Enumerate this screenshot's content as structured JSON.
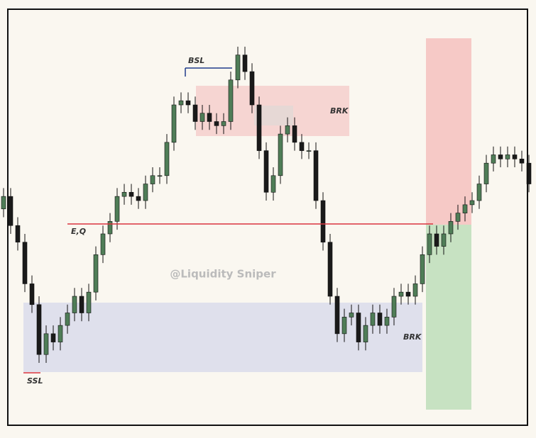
{
  "chart_data": {
    "type": "candlestick",
    "ylim": [
      0,
      100
    ],
    "open": [
      52,
      55,
      48,
      44,
      34,
      29,
      17,
      22,
      20,
      24,
      27,
      31,
      27,
      32,
      41,
      46,
      49,
      55,
      56,
      55,
      54,
      58,
      60,
      60,
      68,
      77,
      78,
      77,
      73,
      75,
      73,
      72,
      73,
      83,
      89,
      85,
      77,
      66,
      56,
      60,
      70,
      72,
      68,
      66,
      66,
      54,
      44,
      31,
      22,
      26,
      27,
      20,
      24,
      27,
      24,
      26,
      31,
      32,
      31,
      34,
      41,
      46,
      43,
      46,
      49,
      51,
      53,
      54,
      58,
      63,
      65,
      64,
      65,
      64,
      63
    ],
    "high": [
      57,
      57,
      50,
      46,
      36,
      31,
      24,
      24,
      26,
      29,
      33,
      33,
      34,
      43,
      48,
      51,
      57,
      58,
      58,
      57,
      60,
      62,
      62,
      70,
      79,
      80,
      80,
      79,
      77,
      77,
      75,
      75,
      85,
      91,
      91,
      87,
      79,
      68,
      62,
      72,
      74,
      74,
      70,
      68,
      68,
      56,
      46,
      33,
      28,
      29,
      29,
      26,
      29,
      29,
      28,
      33,
      34,
      34,
      36,
      43,
      48,
      48,
      48,
      51,
      53,
      55,
      56,
      60,
      65,
      67,
      67,
      67,
      67,
      66,
      65
    ],
    "low": [
      50,
      46,
      42,
      32,
      27,
      15,
      15,
      18,
      18,
      22,
      25,
      25,
      25,
      30,
      39,
      44,
      47,
      53,
      53,
      52,
      52,
      56,
      58,
      58,
      66,
      75,
      75,
      71,
      71,
      71,
      70,
      70,
      71,
      81,
      83,
      75,
      64,
      54,
      54,
      58,
      68,
      66,
      64,
      64,
      52,
      42,
      29,
      20,
      20,
      24,
      18,
      18,
      22,
      22,
      22,
      24,
      29,
      29,
      29,
      32,
      39,
      41,
      41,
      44,
      47,
      49,
      51,
      52,
      56,
      61,
      62,
      62,
      62,
      61,
      56
    ],
    "close": [
      55,
      48,
      44,
      34,
      29,
      17,
      22,
      20,
      24,
      27,
      31,
      27,
      32,
      41,
      46,
      49,
      55,
      56,
      55,
      54,
      58,
      60,
      60,
      68,
      77,
      78,
      77,
      73,
      75,
      73,
      72,
      73,
      83,
      89,
      85,
      77,
      66,
      56,
      60,
      70,
      72,
      68,
      66,
      66,
      54,
      44,
      31,
      22,
      26,
      27,
      20,
      24,
      27,
      24,
      26,
      31,
      32,
      31,
      34,
      41,
      46,
      43,
      46,
      49,
      51,
      53,
      54,
      58,
      63,
      65,
      64,
      65,
      64,
      63,
      58
    ],
    "bull_color": "#4f7d57",
    "bear_color": "#1a1a1a",
    "annotations": {
      "bsl": "BSL",
      "brk_top": "BRK",
      "brk_bottom": "BRK",
      "eq": "E,Q",
      "ssl": "SSL",
      "watermark": "@Liquidity Sniper"
    }
  }
}
